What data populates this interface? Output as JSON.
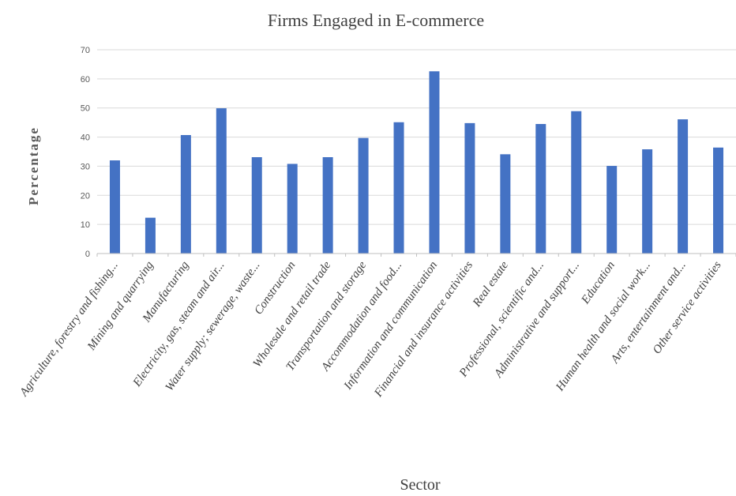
{
  "chart_data": {
    "type": "bar",
    "title": "Firms Engaged in E-commerce",
    "xlabel": "Sector",
    "ylabel": "Percentage",
    "ylim": [
      0,
      70
    ],
    "yticks": [
      0,
      10,
      20,
      30,
      40,
      50,
      60,
      70
    ],
    "grid": true,
    "legend": "none",
    "bar_color": "#4472c4",
    "categories": [
      "Agriculture, forestry and fishing...",
      "Mining and quarrying",
      "Manufacturing",
      "Electricity, gas, steam and air...",
      "Water supply; sewerage, waste...",
      "Construction",
      "Wholesale and retail trade",
      "Transportation and storage",
      "Accommodation and food...",
      "Information and communication",
      "Financial and insurance activities",
      "Real estate",
      "Professional, scientific and...",
      "Administrative and support...",
      "Education",
      "Human health and social work...",
      "Arts, entertainment and...",
      "Other service activities"
    ],
    "values": [
      32,
      12.3,
      40.7,
      49.9,
      33.1,
      30.8,
      33.1,
      39.7,
      45.1,
      62.6,
      44.8,
      34.1,
      44.5,
      48.9,
      30.1,
      35.8,
      46.1,
      36.4
    ]
  }
}
